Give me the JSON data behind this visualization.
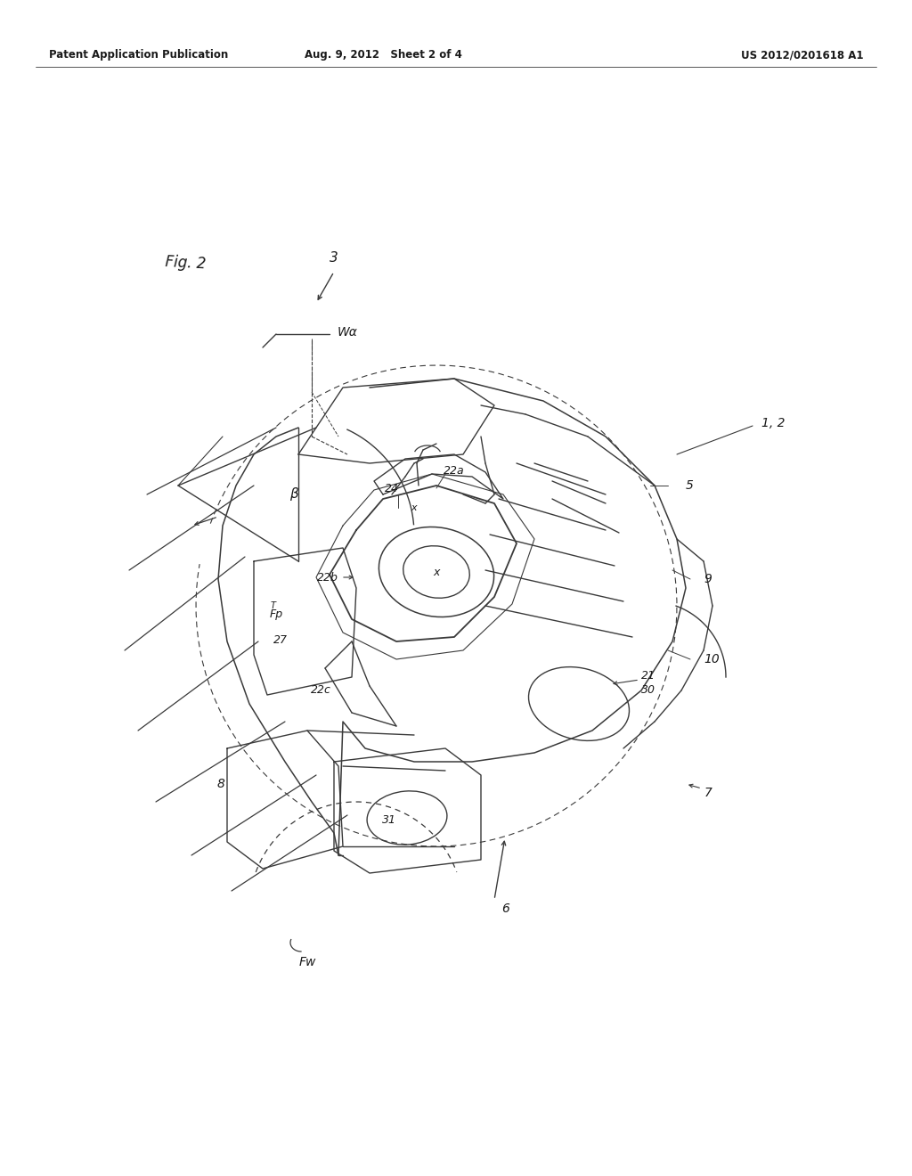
{
  "bg_color": "#ffffff",
  "header_left": "Patent Application Publication",
  "header_center": "Aug. 9, 2012   Sheet 2 of 4",
  "header_right": "US 2012/0201618 A1",
  "fig_width": 10.24,
  "fig_height": 13.2,
  "line_color": "#3a3a3a",
  "text_color": "#1a1a1a",
  "lw_main": 1.0,
  "lw_thin": 0.7,
  "lw_thick": 1.3
}
